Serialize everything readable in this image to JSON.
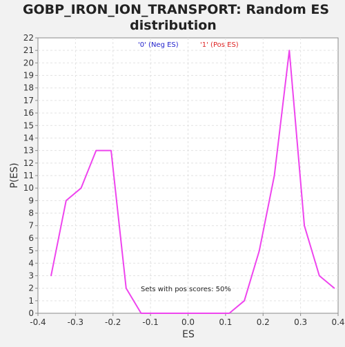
{
  "chart_data": {
    "type": "line",
    "title": [
      "GOBP_IRON_ION_TRANSPORT: Random ES",
      "distribution"
    ],
    "xlabel": "ES",
    "ylabel": "P(ES)",
    "xlim": [
      -0.4,
      0.4
    ],
    "ylim": [
      0,
      22
    ],
    "x_ticks": [
      "-0.4",
      "-0.3",
      "-0.2",
      "-0.1",
      "0.0",
      "0.1",
      "0.2",
      "0.3",
      "0.4"
    ],
    "y_ticks": [
      "0",
      "1",
      "2",
      "3",
      "4",
      "5",
      "6",
      "7",
      "8",
      "9",
      "10",
      "11",
      "12",
      "13",
      "14",
      "15",
      "16",
      "17",
      "18",
      "19",
      "20",
      "21",
      "22"
    ],
    "grid": true,
    "legend": [
      {
        "label": "'0' (Neg ES)",
        "color": "#2222cc"
      },
      {
        "label": "'1' (Pos ES)",
        "color": "#dd2222"
      }
    ],
    "annotation": "Sets with pos scores: 50%",
    "series": [
      {
        "color": "#ee44ee",
        "x": [
          -0.365,
          -0.325,
          -0.285,
          -0.245,
          -0.205,
          -0.165,
          -0.125,
          -0.085,
          -0.045,
          -0.005,
          0.035,
          0.075,
          0.11,
          0.15,
          0.19,
          0.23,
          0.27,
          0.31,
          0.35,
          0.39
        ],
        "y": [
          3,
          9,
          10,
          13,
          13,
          2,
          0,
          0,
          0,
          0,
          0,
          0,
          0,
          1,
          5,
          11,
          21,
          7,
          3,
          2
        ]
      }
    ]
  }
}
